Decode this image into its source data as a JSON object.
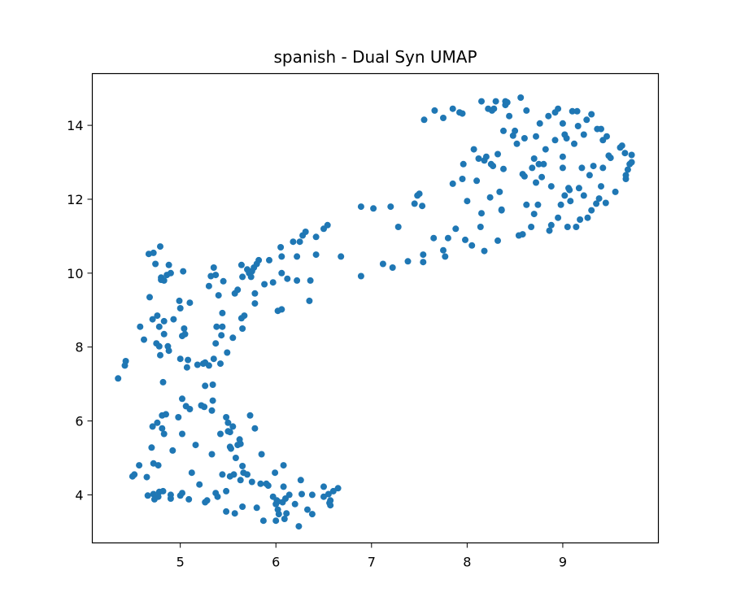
{
  "chart_data": {
    "type": "scatter",
    "title": "spanish - Dual Syn UMAP",
    "xlabel": "",
    "ylabel": "",
    "xlim": [
      4.08,
      10.0
    ],
    "ylim": [
      2.7,
      15.4
    ],
    "xticks": [
      5,
      6,
      7,
      8,
      9
    ],
    "yticks": [
      4,
      6,
      8,
      10,
      12,
      14
    ],
    "color": "#1f77b4",
    "grid": false,
    "points": [
      [
        4.35,
        7.15
      ],
      [
        4.42,
        7.5
      ],
      [
        4.43,
        7.62
      ],
      [
        4.5,
        4.5
      ],
      [
        4.52,
        4.55
      ],
      [
        4.57,
        4.8
      ],
      [
        4.58,
        8.55
      ],
      [
        4.62,
        8.2
      ],
      [
        4.65,
        4.48
      ],
      [
        4.66,
        3.98
      ],
      [
        4.67,
        10.52
      ],
      [
        4.68,
        9.35
      ],
      [
        4.7,
        5.28
      ],
      [
        4.71,
        5.85
      ],
      [
        4.71,
        8.75
      ],
      [
        4.72,
        4.02
      ],
      [
        4.72,
        4.85
      ],
      [
        4.72,
        10.55
      ],
      [
        4.73,
        3.88
      ],
      [
        4.74,
        10.25
      ],
      [
        4.75,
        8.1
      ],
      [
        4.76,
        8.85
      ],
      [
        4.76,
        5.95
      ],
      [
        4.77,
        4.8
      ],
      [
        4.77,
        3.95
      ],
      [
        4.78,
        4.08
      ],
      [
        4.78,
        8.55
      ],
      [
        4.78,
        8.02
      ],
      [
        4.79,
        10.72
      ],
      [
        4.79,
        7.78
      ],
      [
        4.8,
        9.82
      ],
      [
        4.8,
        9.88
      ],
      [
        4.81,
        6.15
      ],
      [
        4.81,
        5.8
      ],
      [
        4.82,
        4.1
      ],
      [
        4.82,
        7.05
      ],
      [
        4.83,
        5.65
      ],
      [
        4.83,
        8.35
      ],
      [
        4.83,
        9.8
      ],
      [
        4.83,
        8.7
      ],
      [
        4.85,
        6.18
      ],
      [
        4.86,
        9.95
      ],
      [
        4.87,
        8.02
      ],
      [
        4.88,
        10.22
      ],
      [
        4.88,
        7.9
      ],
      [
        4.9,
        3.9
      ],
      [
        4.9,
        10.0
      ],
      [
        4.9,
        4.0
      ],
      [
        4.92,
        5.2
      ],
      [
        4.93,
        8.75
      ],
      [
        4.98,
        6.1
      ],
      [
        4.99,
        9.25
      ],
      [
        5.0,
        7.68
      ],
      [
        5.0,
        9.05
      ],
      [
        5.0,
        3.98
      ],
      [
        5.02,
        8.3
      ],
      [
        5.02,
        4.05
      ],
      [
        5.02,
        6.6
      ],
      [
        5.02,
        5.65
      ],
      [
        5.03,
        10.05
      ],
      [
        5.04,
        8.5
      ],
      [
        5.05,
        8.35
      ],
      [
        5.06,
        6.4
      ],
      [
        5.07,
        7.45
      ],
      [
        5.08,
        7.65
      ],
      [
        5.09,
        3.88
      ],
      [
        5.1,
        9.2
      ],
      [
        5.1,
        6.32
      ],
      [
        5.12,
        4.6
      ],
      [
        5.16,
        5.35
      ],
      [
        5.18,
        7.52
      ],
      [
        5.2,
        4.28
      ],
      [
        5.22,
        6.42
      ],
      [
        5.24,
        7.55
      ],
      [
        5.25,
        6.38
      ],
      [
        5.26,
        7.58
      ],
      [
        5.26,
        6.95
      ],
      [
        5.26,
        3.8
      ],
      [
        5.28,
        3.85
      ],
      [
        5.3,
        9.65
      ],
      [
        5.3,
        7.5
      ],
      [
        5.32,
        9.92
      ],
      [
        5.33,
        6.28
      ],
      [
        5.33,
        5.1
      ],
      [
        5.34,
        6.98
      ],
      [
        5.34,
        6.55
      ],
      [
        5.35,
        10.15
      ],
      [
        5.35,
        7.68
      ],
      [
        5.37,
        8.1
      ],
      [
        5.37,
        9.95
      ],
      [
        5.37,
        4.05
      ],
      [
        5.38,
        8.55
      ],
      [
        5.39,
        3.95
      ],
      [
        5.4,
        9.4
      ],
      [
        5.42,
        5.65
      ],
      [
        5.42,
        7.55
      ],
      [
        5.43,
        8.32
      ],
      [
        5.44,
        4.55
      ],
      [
        5.44,
        8.92
      ],
      [
        5.44,
        8.55
      ],
      [
        5.45,
        9.78
      ],
      [
        5.48,
        6.1
      ],
      [
        5.48,
        4.1
      ],
      [
        5.48,
        3.55
      ],
      [
        5.49,
        7.85
      ],
      [
        5.5,
        5.95
      ],
      [
        5.5,
        5.72
      ],
      [
        5.52,
        5.7
      ],
      [
        5.52,
        5.3
      ],
      [
        5.52,
        4.5
      ],
      [
        5.53,
        5.25
      ],
      [
        5.55,
        5.85
      ],
      [
        5.55,
        8.25
      ],
      [
        5.56,
        4.55
      ],
      [
        5.57,
        3.5
      ],
      [
        5.57,
        9.45
      ],
      [
        5.58,
        5.0
      ],
      [
        5.6,
        5.35
      ],
      [
        5.6,
        9.55
      ],
      [
        5.62,
        5.5
      ],
      [
        5.63,
        5.38
      ],
      [
        5.63,
        4.4
      ],
      [
        5.64,
        10.22
      ],
      [
        5.64,
        8.78
      ],
      [
        5.65,
        3.68
      ],
      [
        5.65,
        4.78
      ],
      [
        5.65,
        8.5
      ],
      [
        5.65,
        9.9
      ],
      [
        5.66,
        4.6
      ],
      [
        5.67,
        8.85
      ],
      [
        5.7,
        10.1
      ],
      [
        5.7,
        4.55
      ],
      [
        5.72,
        10.0
      ],
      [
        5.73,
        6.15
      ],
      [
        5.74,
        9.9
      ],
      [
        5.75,
        10.05
      ],
      [
        5.75,
        4.35
      ],
      [
        5.77,
        10.15
      ],
      [
        5.78,
        5.8
      ],
      [
        5.78,
        9.45
      ],
      [
        5.78,
        9.18
      ],
      [
        5.8,
        10.25
      ],
      [
        5.8,
        3.65
      ],
      [
        5.82,
        10.35
      ],
      [
        5.84,
        4.3
      ],
      [
        5.85,
        5.1
      ],
      [
        5.87,
        3.3
      ],
      [
        5.88,
        9.7
      ],
      [
        5.9,
        4.3
      ],
      [
        5.92,
        4.25
      ],
      [
        5.93,
        10.35
      ],
      [
        5.97,
        3.95
      ],
      [
        5.97,
        9.75
      ],
      [
        5.99,
        4.6
      ],
      [
        6.0,
        3.75
      ],
      [
        6.0,
        3.3
      ],
      [
        6.01,
        3.85
      ],
      [
        6.02,
        3.6
      ],
      [
        6.02,
        3.82
      ],
      [
        6.02,
        8.98
      ],
      [
        6.03,
        3.48
      ],
      [
        6.05,
        10.7
      ],
      [
        6.06,
        9.02
      ],
      [
        6.06,
        10.45
      ],
      [
        6.06,
        10.0
      ],
      [
        6.07,
        3.8
      ],
      [
        6.08,
        4.8
      ],
      [
        6.08,
        4.22
      ],
      [
        6.09,
        3.35
      ],
      [
        6.1,
        3.9
      ],
      [
        6.11,
        3.5
      ],
      [
        6.12,
        9.85
      ],
      [
        6.14,
        4.0
      ],
      [
        6.18,
        10.85
      ],
      [
        6.2,
        3.75
      ],
      [
        6.22,
        9.8
      ],
      [
        6.22,
        10.45
      ],
      [
        6.24,
        3.15
      ],
      [
        6.25,
        10.85
      ],
      [
        6.26,
        4.4
      ],
      [
        6.27,
        4.02
      ],
      [
        6.28,
        11.02
      ],
      [
        6.31,
        11.12
      ],
      [
        6.33,
        3.6
      ],
      [
        6.35,
        9.25
      ],
      [
        6.36,
        9.8
      ],
      [
        6.38,
        3.48
      ],
      [
        6.38,
        4.0
      ],
      [
        6.42,
        10.5
      ],
      [
        6.42,
        10.98
      ],
      [
        6.5,
        11.2
      ],
      [
        6.5,
        3.95
      ],
      [
        6.5,
        4.22
      ],
      [
        6.54,
        11.3
      ],
      [
        6.55,
        4.02
      ],
      [
        6.56,
        3.78
      ],
      [
        6.57,
        3.85
      ],
      [
        6.57,
        3.72
      ],
      [
        6.6,
        4.1
      ],
      [
        6.65,
        4.18
      ],
      [
        6.68,
        10.45
      ],
      [
        6.89,
        9.92
      ],
      [
        6.89,
        11.8
      ],
      [
        7.02,
        11.75
      ],
      [
        7.12,
        10.25
      ],
      [
        7.2,
        11.8
      ],
      [
        7.22,
        10.15
      ],
      [
        7.28,
        11.25
      ],
      [
        7.38,
        10.32
      ],
      [
        7.45,
        11.88
      ],
      [
        7.48,
        12.1
      ],
      [
        7.5,
        12.15
      ],
      [
        7.53,
        11.82
      ],
      [
        7.54,
        10.5
      ],
      [
        7.54,
        10.3
      ],
      [
        7.55,
        14.15
      ],
      [
        7.65,
        10.95
      ],
      [
        7.66,
        14.4
      ],
      [
        7.75,
        10.62
      ],
      [
        7.75,
        14.2
      ],
      [
        7.77,
        10.45
      ],
      [
        7.8,
        10.95
      ],
      [
        7.85,
        12.42
      ],
      [
        7.85,
        14.45
      ],
      [
        7.88,
        11.2
      ],
      [
        7.92,
        14.35
      ],
      [
        7.95,
        14.32
      ],
      [
        7.95,
        12.55
      ],
      [
        7.96,
        12.95
      ],
      [
        7.98,
        10.9
      ],
      [
        8.0,
        11.95
      ],
      [
        8.05,
        10.75
      ],
      [
        8.07,
        13.35
      ],
      [
        8.1,
        12.5
      ],
      [
        8.12,
        13.1
      ],
      [
        8.14,
        11.25
      ],
      [
        8.15,
        11.62
      ],
      [
        8.15,
        14.65
      ],
      [
        8.18,
        10.6
      ],
      [
        8.18,
        13.05
      ],
      [
        8.2,
        13.15
      ],
      [
        8.22,
        14.45
      ],
      [
        8.24,
        12.05
      ],
      [
        8.25,
        12.95
      ],
      [
        8.26,
        14.4
      ],
      [
        8.27,
        12.9
      ],
      [
        8.28,
        14.45
      ],
      [
        8.3,
        14.65
      ],
      [
        8.32,
        10.88
      ],
      [
        8.32,
        13.22
      ],
      [
        8.34,
        12.2
      ],
      [
        8.36,
        11.72
      ],
      [
        8.36,
        11.7
      ],
      [
        8.38,
        13.85
      ],
      [
        8.38,
        12.82
      ],
      [
        8.4,
        14.65
      ],
      [
        8.4,
        14.55
      ],
      [
        8.42,
        14.62
      ],
      [
        8.44,
        14.25
      ],
      [
        8.48,
        13.72
      ],
      [
        8.5,
        13.85
      ],
      [
        8.52,
        13.5
      ],
      [
        8.54,
        11.02
      ],
      [
        8.56,
        14.75
      ],
      [
        8.58,
        11.05
      ],
      [
        8.58,
        12.68
      ],
      [
        8.6,
        13.65
      ],
      [
        8.6,
        12.62
      ],
      [
        8.62,
        14.4
      ],
      [
        8.62,
        11.85
      ],
      [
        8.67,
        11.25
      ],
      [
        8.68,
        12.85
      ],
      [
        8.7,
        13.1
      ],
      [
        8.7,
        11.6
      ],
      [
        8.72,
        13.7
      ],
      [
        8.72,
        12.45
      ],
      [
        8.74,
        11.85
      ],
      [
        8.75,
        12.95
      ],
      [
        8.76,
        14.05
      ],
      [
        8.78,
        12.6
      ],
      [
        8.8,
        12.95
      ],
      [
        8.82,
        13.35
      ],
      [
        8.85,
        14.25
      ],
      [
        8.86,
        11.15
      ],
      [
        8.88,
        12.35
      ],
      [
        8.88,
        11.3
      ],
      [
        8.92,
        14.35
      ],
      [
        8.92,
        13.6
      ],
      [
        8.95,
        11.5
      ],
      [
        8.95,
        14.45
      ],
      [
        8.98,
        11.85
      ],
      [
        9.0,
        12.85
      ],
      [
        9.0,
        13.15
      ],
      [
        9.0,
        14.05
      ],
      [
        9.02,
        13.75
      ],
      [
        9.02,
        12.1
      ],
      [
        9.04,
        13.65
      ],
      [
        9.05,
        11.25
      ],
      [
        9.06,
        12.3
      ],
      [
        9.07,
        12.25
      ],
      [
        9.08,
        11.95
      ],
      [
        9.1,
        14.38
      ],
      [
        9.12,
        13.5
      ],
      [
        9.14,
        11.25
      ],
      [
        9.15,
        14.38
      ],
      [
        9.16,
        13.98
      ],
      [
        9.17,
        12.3
      ],
      [
        9.18,
        11.45
      ],
      [
        9.2,
        12.85
      ],
      [
        9.22,
        12.1
      ],
      [
        9.22,
        13.75
      ],
      [
        9.25,
        14.15
      ],
      [
        9.26,
        11.5
      ],
      [
        9.28,
        12.65
      ],
      [
        9.3,
        14.3
      ],
      [
        9.3,
        11.7
      ],
      [
        9.32,
        12.9
      ],
      [
        9.35,
        11.88
      ],
      [
        9.36,
        13.9
      ],
      [
        9.38,
        12.02
      ],
      [
        9.4,
        12.35
      ],
      [
        9.4,
        13.9
      ],
      [
        9.42,
        13.6
      ],
      [
        9.42,
        12.85
      ],
      [
        9.45,
        11.9
      ],
      [
        9.46,
        13.7
      ],
      [
        9.48,
        13.18
      ],
      [
        9.5,
        13.12
      ],
      [
        9.55,
        12.2
      ],
      [
        9.6,
        13.4
      ],
      [
        9.62,
        13.45
      ],
      [
        9.65,
        13.25
      ],
      [
        9.66,
        12.55
      ],
      [
        9.66,
        12.65
      ],
      [
        9.68,
        12.8
      ],
      [
        9.7,
        12.95
      ],
      [
        9.72,
        13.0
      ],
      [
        9.72,
        13.2
      ]
    ]
  }
}
